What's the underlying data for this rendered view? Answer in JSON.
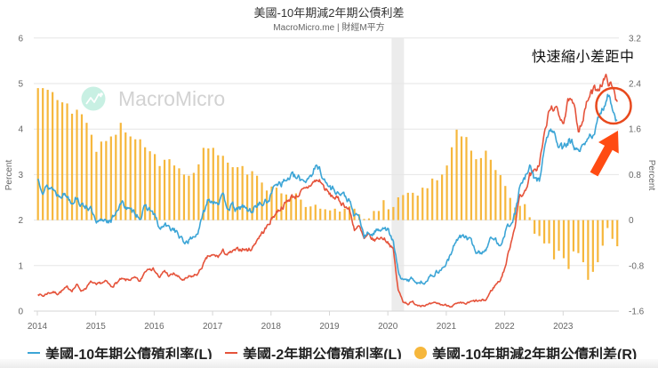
{
  "header": {
    "title": "美國-10年期減2年期公債利差",
    "subtitle": "MacroMicro.me | 財經M平方"
  },
  "watermark": {
    "text": "MacroMicro",
    "logo_icon": "chart-line-icon",
    "logo_color": "#c8f0e3"
  },
  "annotation": {
    "text": "快速縮小差距中",
    "circle_color": "#e8491d",
    "arrow_color": "#ff4b12"
  },
  "legend": {
    "position": "bottom",
    "items": [
      {
        "label": "美國-10年期公債殖利率(L)",
        "symbol": "line",
        "color": "#3ca5d6"
      },
      {
        "label": "美國-2年期公債殖利率(L)",
        "symbol": "line",
        "color": "#e5533b"
      },
      {
        "label": "美國-10年期減2年期公債利差(R)",
        "symbol": "circle",
        "color": "#f6b73c"
      }
    ]
  },
  "chart_data": {
    "type": "line+bar",
    "title": "美國-10年期減2年期公債利差",
    "subtitle": "MacroMicro.me | 財經M平方",
    "xlabel": "",
    "x_ticks": [
      "2014",
      "2015",
      "2016",
      "2017",
      "2018",
      "2019",
      "2020",
      "2021",
      "2022",
      "2023"
    ],
    "left_axis": {
      "label": "Percent",
      "ylim": [
        0,
        6
      ],
      "ticks": [
        "0",
        "1",
        "2",
        "3",
        "4",
        "5",
        "6"
      ]
    },
    "right_axis": {
      "label": "Percent",
      "ylim": [
        -1.6,
        3.2
      ],
      "ticks": [
        "-1.6",
        "-0.8",
        "0",
        "0.8",
        "1.6",
        "2.4",
        "3.2"
      ]
    },
    "grid": true,
    "legend_position": "bottom",
    "shaded_regions": [
      {
        "start": "2020-02",
        "end": "2020-04",
        "color": "#ececec"
      }
    ],
    "x": [
      "2014-01",
      "2014-02",
      "2014-03",
      "2014-04",
      "2014-05",
      "2014-06",
      "2014-07",
      "2014-08",
      "2014-09",
      "2014-10",
      "2014-11",
      "2014-12",
      "2015-01",
      "2015-02",
      "2015-03",
      "2015-04",
      "2015-05",
      "2015-06",
      "2015-07",
      "2015-08",
      "2015-09",
      "2015-10",
      "2015-11",
      "2015-12",
      "2016-01",
      "2016-02",
      "2016-03",
      "2016-04",
      "2016-05",
      "2016-06",
      "2016-07",
      "2016-08",
      "2016-09",
      "2016-10",
      "2016-11",
      "2016-12",
      "2017-01",
      "2017-02",
      "2017-03",
      "2017-04",
      "2017-05",
      "2017-06",
      "2017-07",
      "2017-08",
      "2017-09",
      "2017-10",
      "2017-11",
      "2017-12",
      "2018-01",
      "2018-02",
      "2018-03",
      "2018-04",
      "2018-05",
      "2018-06",
      "2018-07",
      "2018-08",
      "2018-09",
      "2018-10",
      "2018-11",
      "2018-12",
      "2019-01",
      "2019-02",
      "2019-03",
      "2019-04",
      "2019-05",
      "2019-06",
      "2019-07",
      "2019-08",
      "2019-09",
      "2019-10",
      "2019-11",
      "2019-12",
      "2020-01",
      "2020-02",
      "2020-03",
      "2020-04",
      "2020-05",
      "2020-06",
      "2020-07",
      "2020-08",
      "2020-09",
      "2020-10",
      "2020-11",
      "2020-12",
      "2021-01",
      "2021-02",
      "2021-03",
      "2021-04",
      "2021-05",
      "2021-06",
      "2021-07",
      "2021-08",
      "2021-09",
      "2021-10",
      "2021-11",
      "2021-12",
      "2022-01",
      "2022-02",
      "2022-03",
      "2022-04",
      "2022-05",
      "2022-06",
      "2022-07",
      "2022-08",
      "2022-09",
      "2022-10",
      "2022-11",
      "2022-12",
      "2023-01",
      "2023-02",
      "2023-03",
      "2023-04",
      "2023-05",
      "2023-06",
      "2023-07",
      "2023-08",
      "2023-09",
      "2023-10",
      "2023-11",
      "2023-12"
    ],
    "series": [
      {
        "name": "美國-10年期公債殖利率(L)",
        "type": "line",
        "axis": "left",
        "color": "#3ca5d6",
        "values": [
          2.9,
          2.7,
          2.72,
          2.71,
          2.56,
          2.6,
          2.54,
          2.42,
          2.53,
          2.3,
          2.33,
          2.21,
          1.88,
          1.98,
          2.04,
          1.94,
          2.2,
          2.36,
          2.32,
          2.17,
          2.17,
          2.07,
          2.26,
          2.24,
          2.09,
          1.78,
          1.89,
          1.81,
          1.81,
          1.64,
          1.5,
          1.56,
          1.63,
          1.76,
          2.14,
          2.49,
          2.43,
          2.42,
          2.48,
          2.3,
          2.3,
          2.19,
          2.32,
          2.21,
          2.2,
          2.36,
          2.35,
          2.4,
          2.58,
          2.86,
          2.84,
          2.87,
          2.98,
          2.91,
          2.89,
          2.89,
          3.0,
          3.15,
          3.12,
          2.83,
          2.71,
          2.68,
          2.57,
          2.53,
          2.4,
          2.07,
          2.06,
          1.63,
          1.7,
          1.71,
          1.81,
          1.86,
          1.76,
          1.5,
          0.87,
          0.66,
          0.67,
          0.73,
          0.62,
          0.65,
          0.68,
          0.79,
          0.87,
          0.93,
          1.08,
          1.26,
          1.61,
          1.64,
          1.62,
          1.52,
          1.32,
          1.28,
          1.37,
          1.58,
          1.56,
          1.47,
          1.76,
          1.93,
          2.13,
          2.75,
          2.9,
          3.14,
          2.9,
          2.9,
          3.52,
          3.98,
          3.89,
          3.62,
          3.53,
          3.75,
          3.66,
          3.46,
          3.57,
          3.75,
          3.9,
          4.17,
          4.38,
          4.8,
          4.5,
          4.2
        ]
      },
      {
        "name": "美國-2年期公債殖利率(L)",
        "type": "line",
        "axis": "left",
        "color": "#e5533b",
        "values": [
          0.39,
          0.33,
          0.4,
          0.42,
          0.39,
          0.45,
          0.51,
          0.47,
          0.57,
          0.45,
          0.53,
          0.64,
          0.55,
          0.62,
          0.64,
          0.54,
          0.61,
          0.69,
          0.67,
          0.7,
          0.71,
          0.64,
          0.88,
          0.98,
          0.9,
          0.73,
          0.88,
          0.77,
          0.82,
          0.73,
          0.67,
          0.74,
          0.77,
          0.84,
          1.03,
          1.2,
          1.21,
          1.2,
          1.31,
          1.24,
          1.3,
          1.34,
          1.37,
          1.34,
          1.38,
          1.58,
          1.71,
          1.84,
          2.03,
          2.18,
          2.28,
          2.38,
          2.51,
          2.53,
          2.61,
          2.65,
          2.78,
          2.86,
          2.86,
          2.68,
          2.54,
          2.5,
          2.41,
          2.34,
          2.21,
          1.81,
          1.84,
          1.57,
          1.65,
          1.55,
          1.61,
          1.61,
          1.52,
          1.33,
          0.45,
          0.22,
          0.17,
          0.19,
          0.14,
          0.14,
          0.13,
          0.15,
          0.17,
          0.14,
          0.13,
          0.12,
          0.15,
          0.16,
          0.16,
          0.2,
          0.22,
          0.22,
          0.24,
          0.43,
          0.58,
          0.69,
          0.98,
          1.44,
          1.91,
          2.54,
          2.61,
          2.99,
          3.04,
          3.25,
          3.86,
          4.38,
          4.5,
          4.29,
          4.21,
          4.62,
          4.49,
          4.02,
          4.26,
          4.66,
          4.82,
          4.91,
          5.06,
          5.1,
          4.88,
          4.6
        ]
      },
      {
        "name": "美國-10年期減2年期公債利差(R)",
        "type": "bar",
        "axis": "right",
        "color": "#f6b73c",
        "values": [
          2.32,
          2.32,
          2.29,
          2.25,
          2.11,
          2.07,
          2.05,
          1.87,
          1.94,
          1.86,
          1.71,
          1.5,
          1.2,
          1.38,
          1.39,
          1.47,
          1.5,
          1.71,
          1.54,
          1.47,
          1.42,
          1.42,
          1.28,
          1.21,
          1.16,
          0.95,
          1.06,
          1.07,
          0.96,
          0.91,
          0.8,
          0.78,
          0.83,
          0.98,
          1.27,
          1.26,
          1.27,
          1.14,
          1.13,
          1.01,
          0.93,
          0.93,
          0.95,
          0.8,
          0.86,
          0.78,
          0.66,
          0.52,
          0.59,
          0.57,
          0.47,
          0.45,
          0.41,
          0.47,
          0.36,
          0.23,
          0.24,
          0.27,
          0.2,
          0.19,
          0.17,
          0.2,
          0.15,
          0.2,
          0.24,
          0.2,
          0.1,
          0.02,
          0.03,
          0.16,
          0.16,
          0.35,
          0.19,
          0.23,
          0.4,
          0.44,
          0.48,
          0.48,
          0.43,
          0.57,
          0.56,
          0.73,
          0.7,
          0.8,
          0.96,
          1.28,
          1.59,
          1.47,
          1.46,
          1.22,
          1.07,
          1.09,
          1.22,
          1.06,
          0.88,
          0.79,
          0.6,
          0.39,
          0.22,
          0.25,
          0.28,
          0.05,
          -0.24,
          -0.28,
          -0.41,
          -0.41,
          -0.69,
          -0.54,
          -0.67,
          -0.86,
          -0.55,
          -0.58,
          -0.74,
          -1.05,
          -0.91,
          -0.74,
          -0.45,
          -0.14,
          -0.33,
          -0.46
        ]
      }
    ],
    "annotations": [
      {
        "type": "text",
        "text": "快速縮小差距中",
        "position": "top-right"
      },
      {
        "type": "circle",
        "target": "2023-10",
        "note": "highlights narrowing spread"
      },
      {
        "type": "arrow",
        "direction": "up-right",
        "points_to": "circle"
      }
    ]
  }
}
